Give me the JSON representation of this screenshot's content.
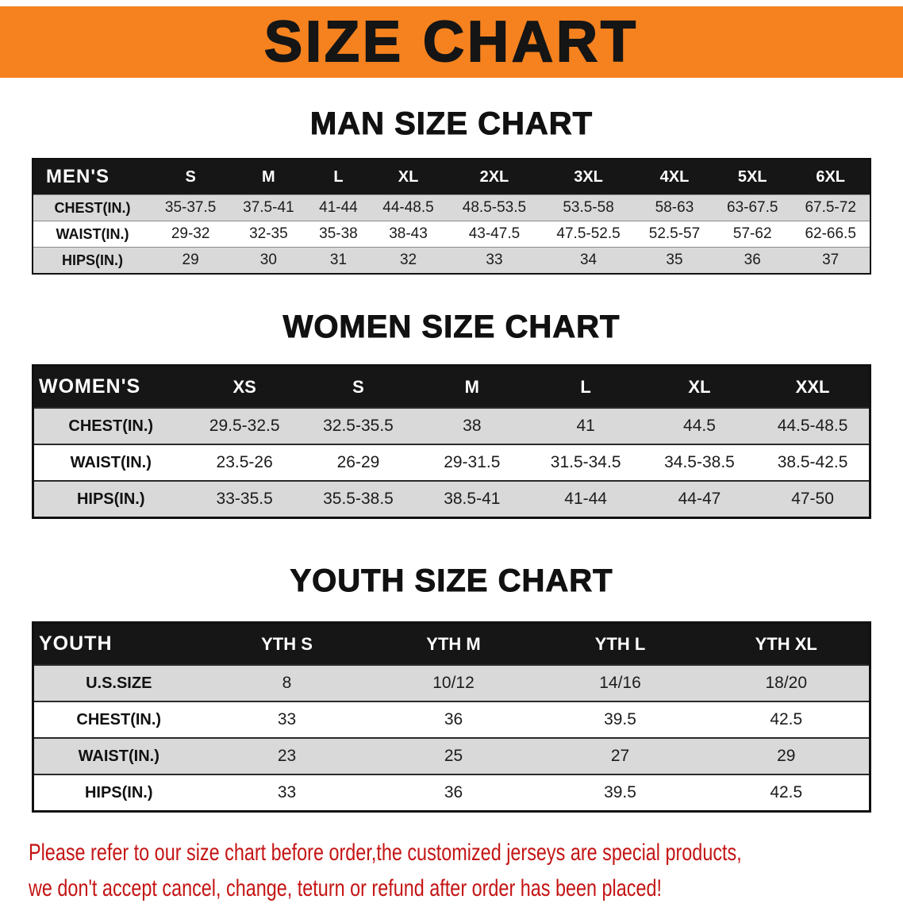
{
  "colors": {
    "banner_bg": "#f5821f",
    "heading_text": "#111111",
    "table_header_bg": "#161616",
    "table_header_text": "#ffffff",
    "row_stripe": "#d9d9d9",
    "disclaimer_text": "#c41414"
  },
  "banner": {
    "title": "SIZE CHART"
  },
  "sections": [
    {
      "heading": "MAN SIZE CHART",
      "table": {
        "header": [
          "MEN'S",
          "S",
          "M",
          "L",
          "XL",
          "2XL",
          "3XL",
          "4XL",
          "5XL",
          "6XL"
        ],
        "rows": [
          [
            "CHEST(IN.)",
            "35-37.5",
            "37.5-41",
            "41-44",
            "44-48.5",
            "48.5-53.5",
            "53.5-58",
            "58-63",
            "63-67.5",
            "67.5-72"
          ],
          [
            "WAIST(IN.)",
            "29-32",
            "32-35",
            "35-38",
            "38-43",
            "43-47.5",
            "47.5-52.5",
            "52.5-57",
            "57-62",
            "62-66.5"
          ],
          [
            "HIPS(IN.)",
            "29",
            "30",
            "31",
            "32",
            "33",
            "34",
            "35",
            "36",
            "37"
          ]
        ]
      }
    },
    {
      "heading": "WOMEN SIZE CHART",
      "table": {
        "header": [
          "WOMEN'S",
          "XS",
          "S",
          "M",
          "L",
          "XL",
          "XXL"
        ],
        "rows": [
          [
            "CHEST(IN.)",
            "29.5-32.5",
            "32.5-35.5",
            "38",
            "41",
            "44.5",
            "44.5-48.5"
          ],
          [
            "WAIST(IN.)",
            "23.5-26",
            "26-29",
            "29-31.5",
            "31.5-34.5",
            "34.5-38.5",
            "38.5-42.5"
          ],
          [
            "HIPS(IN.)",
            "33-35.5",
            "35.5-38.5",
            "38.5-41",
            "41-44",
            "44-47",
            "47-50"
          ]
        ]
      }
    },
    {
      "heading": "YOUTH SIZE CHART",
      "table": {
        "header": [
          "YOUTH",
          "YTH S",
          "YTH M",
          "YTH L",
          "YTH XL"
        ],
        "rows": [
          [
            "U.S.SIZE",
            "8",
            "10/12",
            "14/16",
            "18/20"
          ],
          [
            "CHEST(IN.)",
            "33",
            "36",
            "39.5",
            "42.5"
          ],
          [
            "WAIST(IN.)",
            "23",
            "25",
            "27",
            "29"
          ],
          [
            "HIPS(IN.)",
            "33",
            "36",
            "39.5",
            "42.5"
          ]
        ]
      }
    }
  ],
  "disclaimer": {
    "line1": "Please refer to our size chart before order,the customized jerseys are special products,",
    "line2": "we don't accept cancel, change, teturn or refund after order has been placed!"
  }
}
